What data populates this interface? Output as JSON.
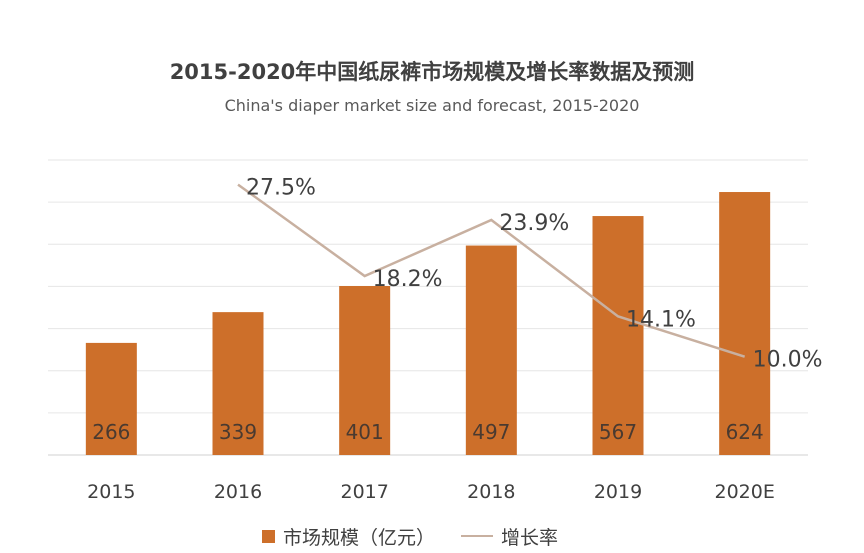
{
  "chart_data": {
    "type": "bar",
    "title": "2015-2020年中国纸尿裤市场规模及增长率数据及预测",
    "subtitle": "China's diaper market size and forecast, 2015-2020",
    "categories": [
      "2015",
      "2016",
      "2017",
      "2018",
      "2019",
      "2020E"
    ],
    "series": [
      {
        "name": "市场规模（亿元）",
        "type": "bar",
        "values": [
          266,
          339,
          401,
          497,
          567,
          624
        ],
        "color": "#cd6f2a"
      },
      {
        "name": "增长率",
        "type": "line",
        "values": [
          null,
          27.5,
          18.2,
          23.9,
          14.1,
          10.0
        ],
        "labels": [
          "",
          "27.5%",
          "18.2%",
          "23.9%",
          "14.1%",
          "10.0%"
        ],
        "color": "#c8b0a0"
      }
    ],
    "ylim": [
      0,
      700
    ],
    "growth_ylim": [
      0,
      30
    ],
    "grid": true,
    "legend": "bottom"
  }
}
